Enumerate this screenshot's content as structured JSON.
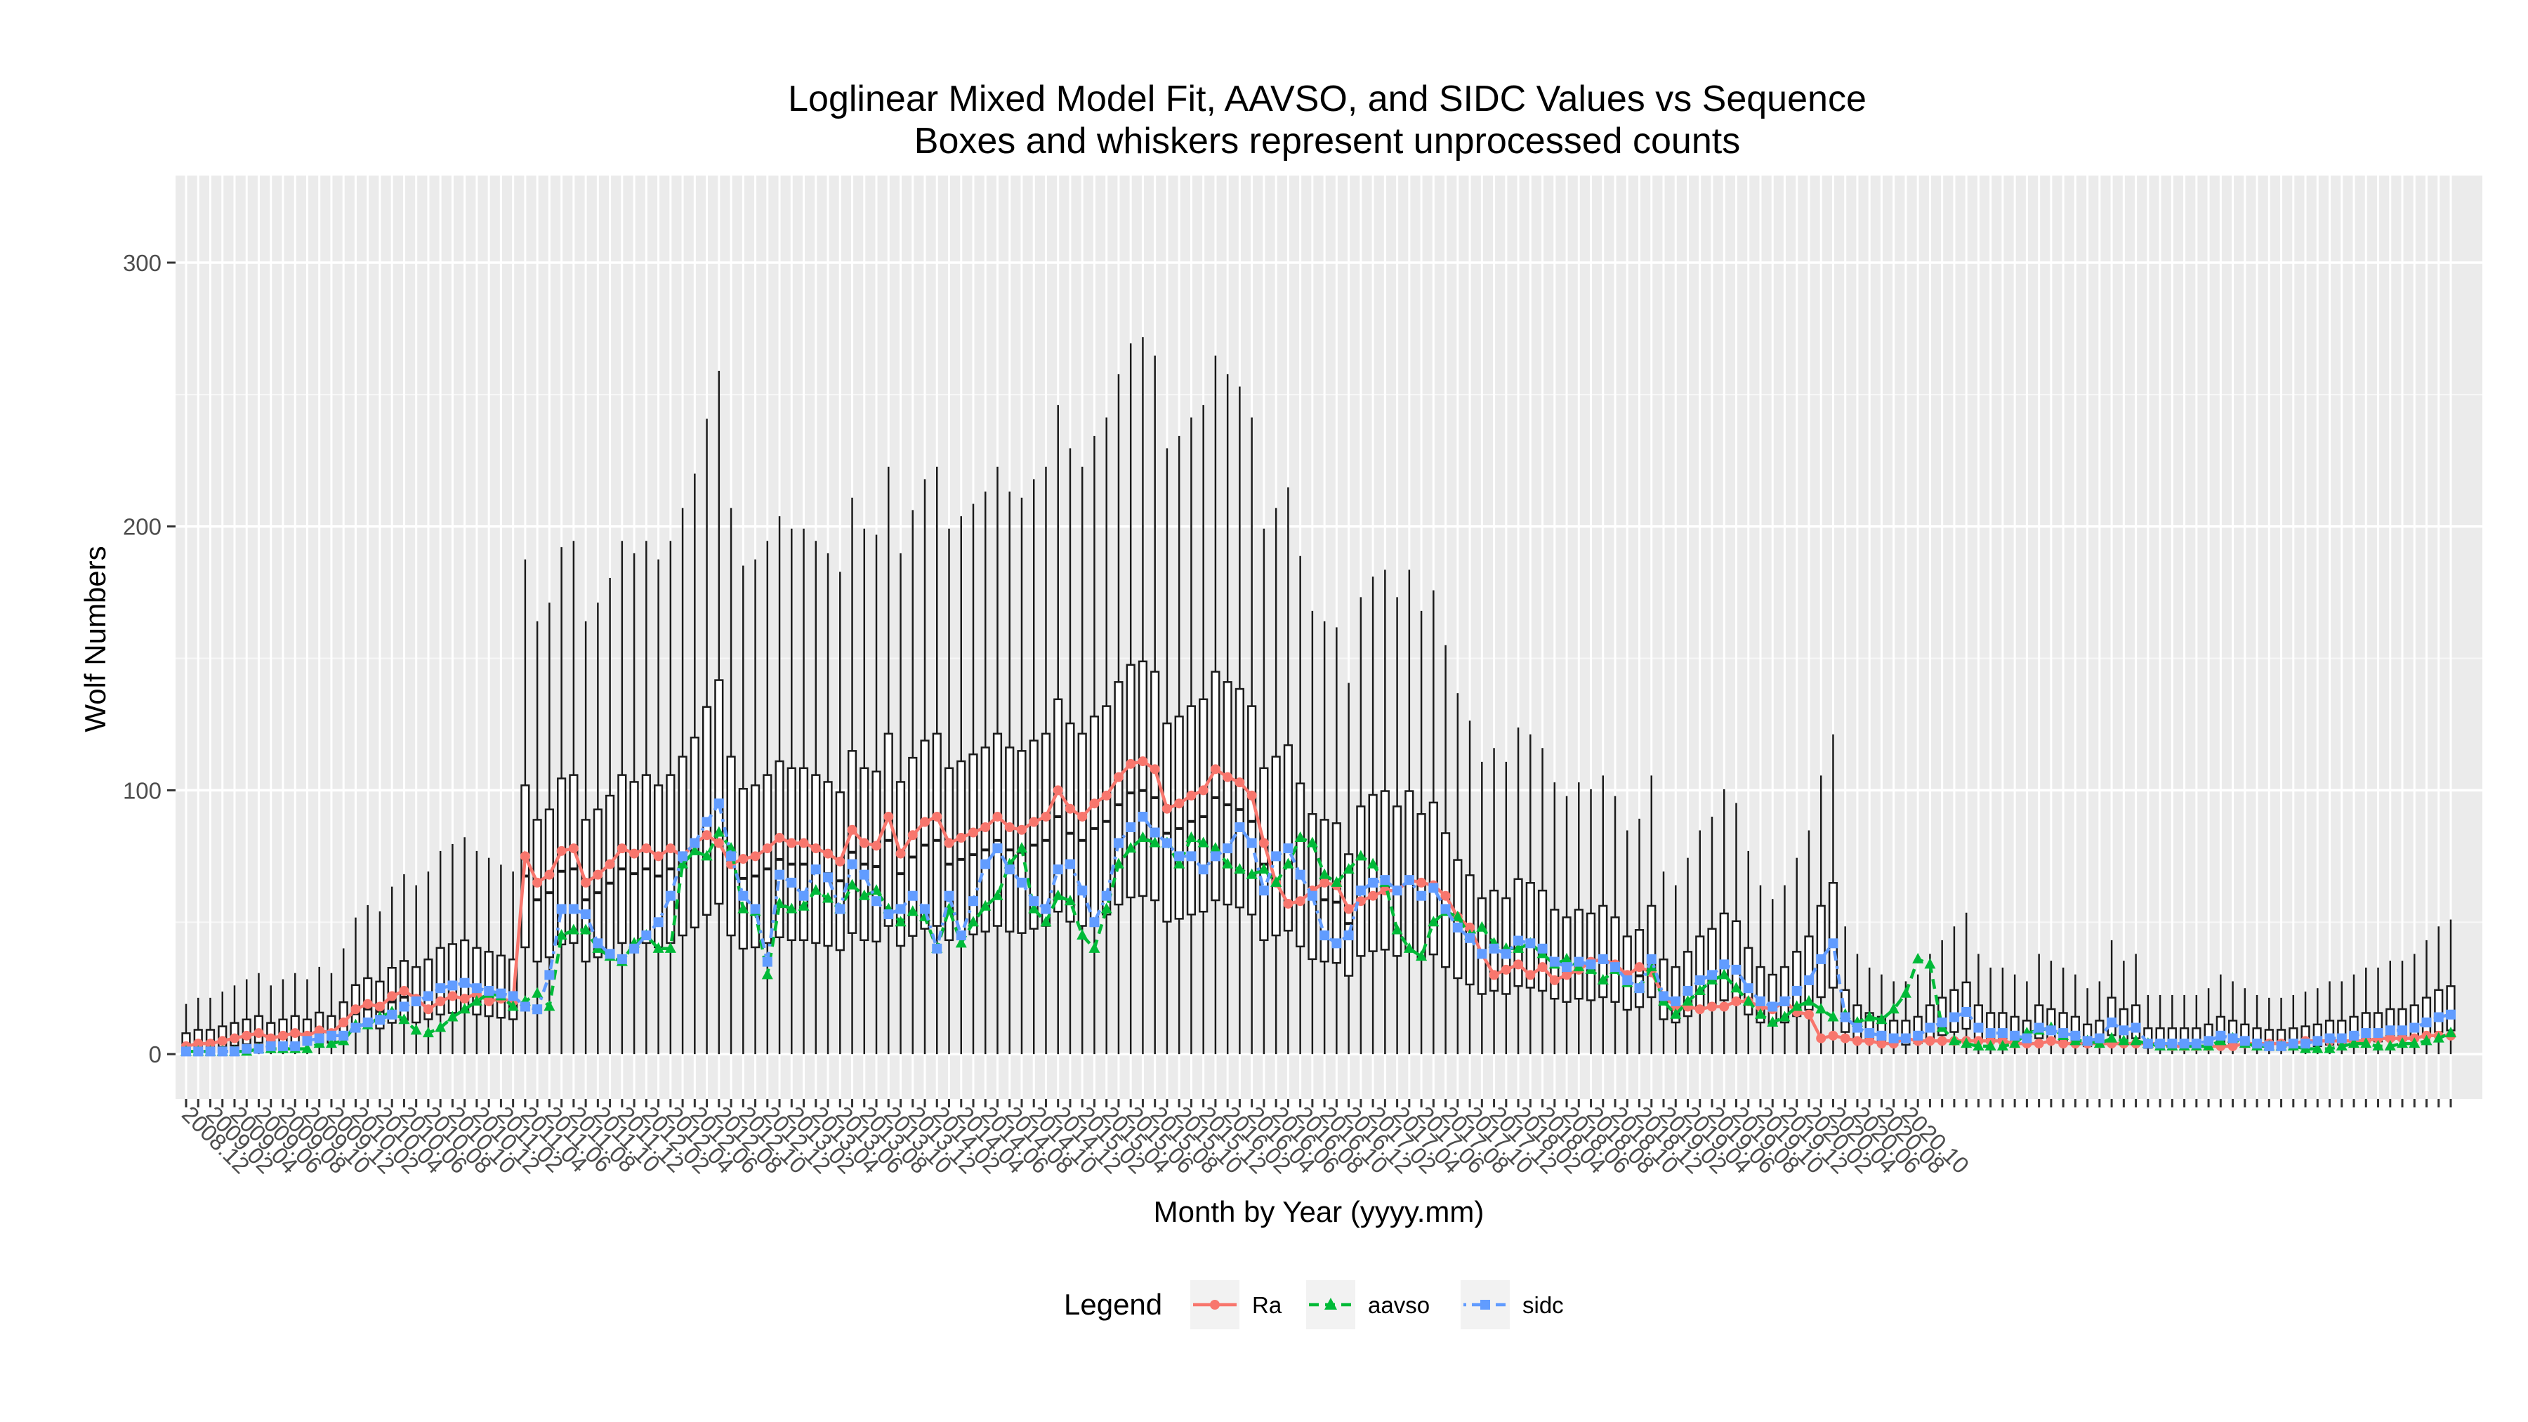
{
  "chart_data": {
    "type": "box",
    "title": "Loglinear Mixed Model Fit, AAVSO, and SIDC Values vs Sequence",
    "subtitle": "Boxes and whiskers represent unprocessed counts",
    "xlabel": "Month by Year (yyyy.mm)",
    "ylabel": "Wolf Numbers",
    "ylim": [
      -17,
      333
    ],
    "yticks": [
      0,
      100,
      200,
      300
    ],
    "grid": true,
    "legend": {
      "title": "Legend",
      "position": "bottom",
      "entries": [
        {
          "name": "Ra",
          "color": "#F8766D",
          "marker": "circle",
          "linestyle": "solid"
        },
        {
          "name": "aavso",
          "color": "#00BA38",
          "marker": "triangle",
          "linestyle": "dashed"
        },
        {
          "name": "sidc",
          "color": "#619CFF",
          "marker": "square",
          "linestyle": "dotdash"
        }
      ]
    },
    "start_month": "2008.12",
    "x_tick_labels": [
      "2008.12",
      "2009.02",
      "2009.04",
      "2009.06",
      "2009.08",
      "2009.10",
      "2009.12",
      "2010.02",
      "2010.04",
      "2010.06",
      "2010.08",
      "2010.10",
      "2010.12",
      "2011.02",
      "2011.04",
      "2011.06",
      "2011.08",
      "2011.10",
      "2011.12",
      "2012.02",
      "2012.04",
      "2012.06",
      "2012.08",
      "2012.10",
      "2012.12",
      "2013.02",
      "2013.04",
      "2013.06",
      "2013.08",
      "2013.10",
      "2013.12",
      "2014.02",
      "2014.04",
      "2014.06",
      "2014.08",
      "2014.10",
      "2014.12",
      "2015.02",
      "2015.04",
      "2015.06",
      "2015.08",
      "2015.10",
      "2015.12",
      "2016.02",
      "2016.04",
      "2016.06",
      "2016.08",
      "2016.10",
      "2016.12",
      "2017.02",
      "2017.04",
      "2017.06",
      "2017.08",
      "2017.10",
      "2017.12",
      "2018.02",
      "2018.04",
      "2018.06",
      "2018.08",
      "2018.10",
      "2018.12",
      "2019.02",
      "2019.04",
      "2019.06",
      "2019.08",
      "2019.10",
      "2019.12",
      "2020.02",
      "2020.04",
      "2020.06",
      "2020.08",
      "2020.10"
    ],
    "series": [
      {
        "name": "Ra",
        "values": [
          3,
          4,
          4,
          5,
          6,
          7,
          8,
          6,
          7,
          8,
          7,
          9,
          8,
          12,
          17,
          19,
          18,
          22,
          24,
          21,
          17,
          20,
          22,
          21,
          23,
          20,
          21,
          20,
          75,
          65,
          68,
          77,
          78,
          65,
          68,
          72,
          78,
          76,
          78,
          75,
          78,
          75,
          80,
          83,
          80,
          72,
          74,
          75,
          78,
          82,
          80,
          80,
          78,
          76,
          73,
          85,
          80,
          79,
          90,
          76,
          83,
          88,
          90,
          80,
          82,
          84,
          86,
          90,
          86,
          85,
          88,
          90,
          100,
          93,
          90,
          95,
          98,
          105,
          110,
          111,
          108,
          93,
          95,
          98,
          100,
          108,
          105,
          103,
          98,
          80,
          65,
          57,
          58,
          62,
          65,
          64,
          55,
          58,
          60,
          62,
          62,
          66,
          65,
          64,
          60,
          52,
          48,
          38,
          30,
          32,
          34,
          30,
          33,
          28,
          30,
          32,
          35,
          36,
          34,
          30,
          33,
          31,
          22,
          18,
          18,
          17,
          18,
          18,
          20,
          20,
          18,
          17,
          20,
          16,
          15,
          6,
          7,
          6,
          5,
          5,
          4,
          4,
          6,
          5,
          5,
          5,
          5,
          5,
          5,
          5,
          5,
          4,
          4,
          4,
          5,
          4,
          4,
          4,
          4,
          4,
          4,
          4,
          4,
          4,
          3,
          3,
          3,
          3,
          3,
          3,
          4,
          4,
          4,
          4,
          4,
          5,
          5,
          5,
          5,
          5,
          5,
          6,
          6,
          6,
          6,
          7,
          7,
          7
        ]
      },
      {
        "name": "aavso",
        "values": [
          1,
          1,
          1,
          1,
          1,
          1,
          2,
          2,
          2,
          2,
          2,
          4,
          4,
          5,
          11,
          11,
          14,
          16,
          13,
          9,
          8,
          10,
          14,
          17,
          20,
          23,
          22,
          18,
          20,
          23,
          18,
          45,
          47,
          47,
          40,
          37,
          35,
          42,
          45,
          40,
          40,
          72,
          77,
          75,
          84,
          78,
          55,
          54,
          30,
          57,
          55,
          56,
          62,
          59,
          55,
          64,
          60,
          62,
          55,
          50,
          54,
          52,
          40,
          55,
          42,
          50,
          56,
          60,
          72,
          78,
          55,
          50,
          60,
          58,
          45,
          40,
          55,
          72,
          78,
          82,
          80,
          80,
          72,
          82,
          80,
          78,
          72,
          70,
          68,
          70,
          65,
          72,
          82,
          80,
          68,
          65,
          70,
          75,
          72,
          65,
          47,
          40,
          37,
          50,
          54,
          52,
          45,
          48,
          42,
          40,
          40,
          42,
          38,
          34,
          36,
          33,
          32,
          28,
          32,
          27,
          25,
          33,
          20,
          15,
          20,
          24,
          28,
          30,
          25,
          20,
          15,
          12,
          14,
          18,
          20,
          17,
          14,
          15,
          12,
          14,
          13,
          17,
          23,
          36,
          34,
          10,
          5,
          4,
          3,
          3,
          3,
          4,
          8,
          9,
          10,
          7,
          5,
          5,
          4,
          6,
          5,
          5,
          4,
          3,
          3,
          3,
          3,
          3,
          5,
          6,
          4,
          3,
          3,
          3,
          3,
          2,
          2,
          2,
          3,
          4,
          4,
          3,
          3,
          4,
          4,
          5,
          6,
          8
        ]
      },
      {
        "name": "sidc",
        "values": [
          1,
          1,
          1,
          1,
          1,
          2,
          2,
          3,
          3,
          3,
          5,
          6,
          7,
          7,
          10,
          12,
          13,
          15,
          18,
          20,
          22,
          25,
          26,
          27,
          25,
          24,
          23,
          22,
          18,
          17,
          30,
          55,
          55,
          53,
          42,
          38,
          36,
          40,
          45,
          50,
          60,
          75,
          80,
          88,
          95,
          75,
          60,
          55,
          35,
          68,
          65,
          60,
          70,
          67,
          55,
          72,
          68,
          58,
          53,
          55,
          60,
          55,
          40,
          60,
          45,
          58,
          72,
          78,
          70,
          65,
          58,
          55,
          70,
          72,
          62,
          50,
          60,
          80,
          86,
          90,
          84,
          80,
          75,
          75,
          70,
          75,
          78,
          86,
          80,
          62,
          75,
          78,
          68,
          60,
          45,
          42,
          45,
          62,
          65,
          66,
          62,
          66,
          60,
          63,
          55,
          48,
          44,
          38,
          40,
          38,
          43,
          42,
          40,
          35,
          33,
          35,
          34,
          36,
          33,
          28,
          25,
          36,
          22,
          20,
          24,
          28,
          30,
          34,
          32,
          25,
          20,
          18,
          20,
          24,
          28,
          36,
          42,
          14,
          10,
          8,
          7,
          6,
          6,
          7,
          10,
          12,
          14,
          16,
          10,
          8,
          8,
          7,
          6,
          10,
          9,
          8,
          7,
          5,
          6,
          12,
          9,
          10,
          4,
          4,
          4,
          4,
          4,
          5,
          7,
          6,
          5,
          4,
          3,
          3,
          4,
          4,
          5,
          6,
          6,
          7,
          8,
          8,
          9,
          9,
          10,
          12,
          14,
          15
        ]
      }
    ]
  }
}
